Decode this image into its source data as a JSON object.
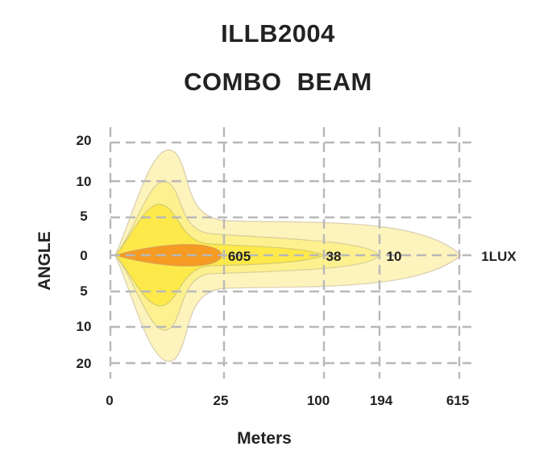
{
  "chart_data": {
    "type": "beam_pattern",
    "title": "ILLB2004",
    "subtitle": "COMBO  BEAM",
    "xlabel": "Meters",
    "ylabel": "ANGLE",
    "x_ticks": [
      "0",
      "25",
      "100",
      "194",
      "615"
    ],
    "y_ticks": [
      "20",
      "10",
      "5",
      "0",
      "5",
      "10",
      "20"
    ],
    "grid": true,
    "series": [
      {
        "name": "605",
        "reach_m": 25,
        "color": "#f59a22"
      },
      {
        "name": "38",
        "reach_m": 100,
        "color": "#fde94a"
      },
      {
        "name": "10",
        "reach_m": 194,
        "color": "#fdf08f"
      },
      {
        "name": "1LUX",
        "reach_m": 615,
        "color": "#fdf3bc"
      }
    ]
  }
}
